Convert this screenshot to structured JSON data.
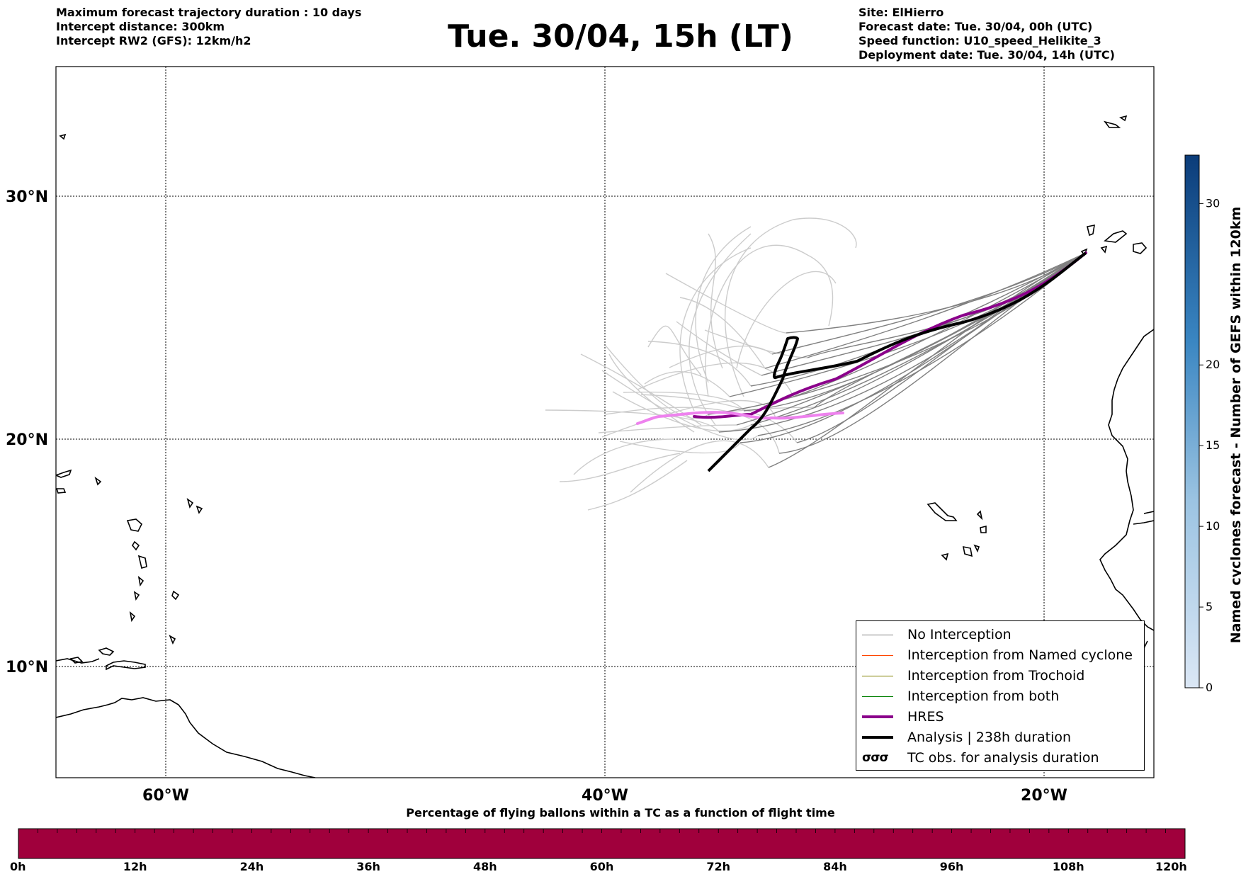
{
  "header_left": [
    "Maximum forecast trajectory duration : 10 days",
    "Intercept distance: 300km",
    "Intercept RW2 (GFS):  12km/h2"
  ],
  "title": "Tue. 30/04, 15h (LT)",
  "header_right": [
    "Site: ElHierro",
    "Forecast date: Tue. 30/04, 00h (UTC)",
    "Speed function: U10_speed_Helikite_3",
    "Deployment date: Tue. 30/04, 14h (UTC)"
  ],
  "map": {
    "lat_labels": [
      "30°N",
      "20°N",
      "10°N"
    ],
    "lon_labels": [
      "60°W",
      "40°W",
      "20°W"
    ],
    "extent": {
      "lon_min": -65,
      "lon_max": -15,
      "lat_min": 5.4,
      "lat_max": 35.3
    },
    "gridlines": true,
    "start_point": {
      "lon": -17.9,
      "lat": 27.6
    },
    "colors": {
      "no_interception": "#808080",
      "hres": "#8b008b",
      "hres_late": "#ee82ee",
      "analysis": "#000000",
      "ensemble_late": "#cccccc"
    }
  },
  "legend": {
    "items": [
      {
        "label": "No Interception",
        "color": "#808080",
        "width": 1
      },
      {
        "label": "Interception from Named cyclone",
        "color": "#ff4500",
        "width": 1
      },
      {
        "label": "Interception from Trochoid",
        "color": "#808000",
        "width": 1
      },
      {
        "label": "Interception from both",
        "color": "#008000",
        "width": 1
      },
      {
        "label": "HRES",
        "color": "#8b008b",
        "width": 4
      },
      {
        "label": "Analysis | 238h duration",
        "color": "#000000",
        "width": 4
      },
      {
        "label": "TC obs. for analysis duration",
        "color": "#000000",
        "width": 0
      }
    ],
    "tc_symbol": "σσσ"
  },
  "colorbar_right": {
    "label": "Named cyclones forecast - Number of GEFS within 120km",
    "ticks": [
      "0",
      "5",
      "10",
      "15",
      "20",
      "30"
    ],
    "tick_values": [
      0,
      5,
      10,
      15,
      20,
      30
    ],
    "max": 33
  },
  "colorbar_bottom": {
    "title": "Percentage of flying ballons within a TC as a function of flight time",
    "ticks": [
      "0h",
      "12h",
      "24h",
      "36h",
      "48h",
      "60h",
      "72h",
      "84h",
      "96h",
      "108h",
      "120h"
    ],
    "color": "#a0003c"
  }
}
